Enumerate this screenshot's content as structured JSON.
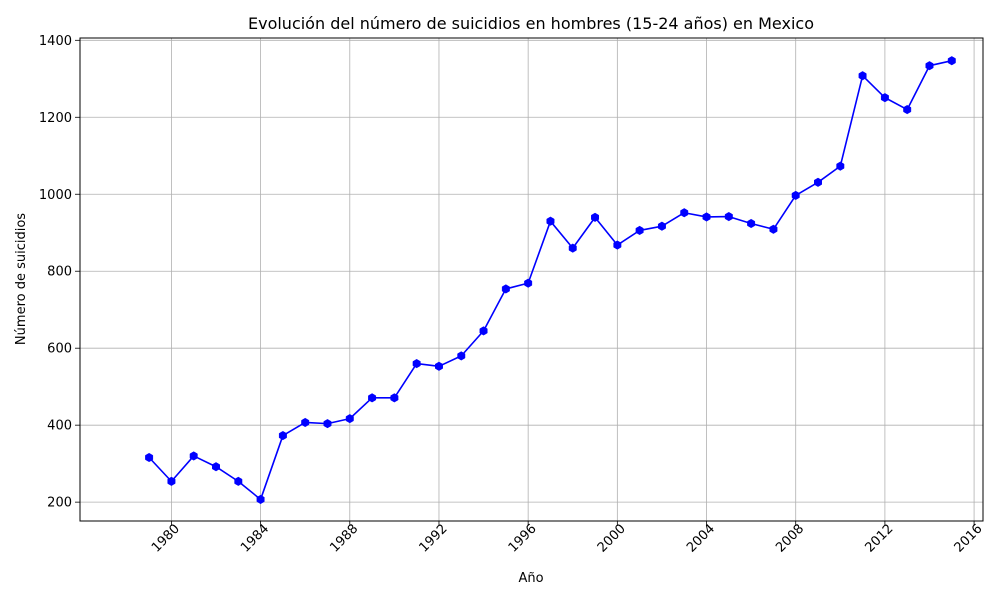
{
  "chart_data": {
    "type": "line",
    "title": "Evolución del número de suicidios en hombres (15-24 años) en Mexico",
    "xlabel": "Año",
    "ylabel": "Número de suicidios",
    "xlim": [
      1975.9,
      2016.4
    ],
    "ylim": [
      151,
      1406
    ],
    "x_ticks": [
      1980,
      1984,
      1988,
      1992,
      1996,
      2000,
      2004,
      2008,
      2012,
      2016
    ],
    "y_ticks": [
      200,
      400,
      600,
      800,
      1000,
      1200,
      1400
    ],
    "grid": true,
    "series": [
      {
        "color": "#0000ff",
        "marker": "hexagon",
        "x": [
          1979,
          1980,
          1981,
          1982,
          1983,
          1984,
          1985,
          1986,
          1987,
          1988,
          1989,
          1990,
          1991,
          1992,
          1993,
          1994,
          1995,
          1996,
          1997,
          1998,
          1999,
          2000,
          2001,
          2002,
          2003,
          2004,
          2005,
          2006,
          2007,
          2008,
          2009,
          2010,
          2011,
          2012,
          2013,
          2014,
          2015
        ],
        "y": [
          316,
          254,
          320,
          292,
          254,
          207,
          373,
          407,
          404,
          417,
          471,
          471,
          560,
          553,
          580,
          645,
          754,
          769,
          930,
          860,
          940,
          868,
          906,
          917,
          952,
          941,
          942,
          924,
          909,
          997,
          1031,
          1073,
          1308,
          1251,
          1220,
          1334,
          1347
        ]
      }
    ]
  }
}
